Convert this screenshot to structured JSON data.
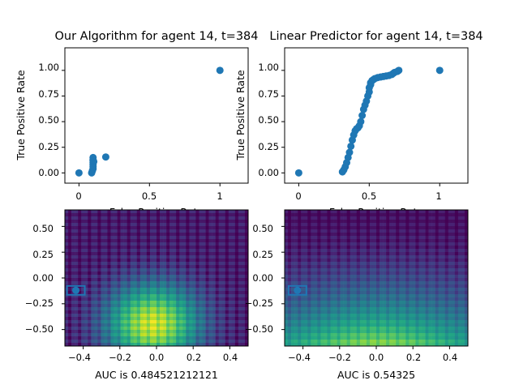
{
  "chart_data": [
    {
      "type": "scatter",
      "title": "Our Algorithm for agent 14, t=384",
      "xlabel": "False Positive Rate",
      "ylabel": "True Positive Rate",
      "xlim": [
        -0.1,
        1.2
      ],
      "ylim": [
        -0.1,
        1.22
      ],
      "xticks": [
        "0",
        "0.5",
        "1"
      ],
      "yticks": [
        "0.00",
        "0.25",
        "0.50",
        "0.75",
        "1.00"
      ],
      "color": "#1f77b4",
      "x": [
        0.0,
        0.09,
        0.095,
        0.1,
        0.1,
        0.1,
        0.1,
        0.105,
        0.1,
        0.1,
        0.1,
        0.19,
        1.0
      ],
      "y": [
        0.0,
        0.0,
        0.02,
        0.04,
        0.06,
        0.08,
        0.1,
        0.11,
        0.12,
        0.13,
        0.15,
        0.155,
        1.0
      ]
    },
    {
      "type": "scatter",
      "title": "Linear Predictor for agent 14, t=384",
      "xlabel": "False Positive Rate",
      "ylabel": "True Positive Rate",
      "xlim": [
        -0.1,
        1.2
      ],
      "ylim": [
        -0.1,
        1.22
      ],
      "xticks": [
        "0",
        "0.5",
        "1"
      ],
      "yticks": [
        "0.00",
        "0.25",
        "0.50",
        "0.75",
        "1.00"
      ],
      "color": "#1f77b4",
      "x": [
        0.0,
        0.31,
        0.32,
        0.33,
        0.34,
        0.35,
        0.36,
        0.37,
        0.38,
        0.39,
        0.4,
        0.41,
        0.42,
        0.43,
        0.44,
        0.45,
        0.46,
        0.47,
        0.48,
        0.49,
        0.5,
        0.5,
        0.51,
        0.51,
        0.52,
        0.53,
        0.54,
        0.56,
        0.58,
        0.6,
        0.62,
        0.64,
        0.66,
        0.67,
        0.68,
        0.7,
        0.71,
        1.0
      ],
      "y": [
        0.0,
        0.01,
        0.03,
        0.06,
        0.1,
        0.15,
        0.2,
        0.26,
        0.32,
        0.37,
        0.41,
        0.43,
        0.44,
        0.46,
        0.5,
        0.56,
        0.62,
        0.66,
        0.7,
        0.75,
        0.79,
        0.83,
        0.86,
        0.88,
        0.9,
        0.91,
        0.92,
        0.93,
        0.935,
        0.94,
        0.945,
        0.95,
        0.96,
        0.97,
        0.98,
        0.99,
        1.0,
        1.0
      ]
    },
    {
      "type": "heatmap",
      "xlabel": "AUC is 0.484521212121",
      "xlim": [
        -0.5,
        0.5
      ],
      "ylim": [
        -0.66,
        0.66
      ],
      "xticks": [
        "−0.4",
        "−0.2",
        "0.0",
        "0.2",
        "0.4"
      ],
      "yticks": [
        "0.50",
        "0.25",
        "0.00",
        "−0.25",
        "−0.50"
      ],
      "colormap": "viridis",
      "peak_x": -0.02,
      "peak_y": -0.45,
      "marker_x": -0.44,
      "marker_y": -0.12
    },
    {
      "type": "heatmap",
      "xlabel": "AUC is 0.54325",
      "xlim": [
        -0.5,
        0.5
      ],
      "ylim": [
        -0.66,
        0.66
      ],
      "xticks": [
        "−0.4",
        "−0.2",
        "0.0",
        "0.2",
        "0.4"
      ],
      "yticks": [
        "0.50",
        "0.25",
        "0.00",
        "−0.25",
        "−0.50"
      ],
      "colormap": "viridis",
      "peak_x": 0.0,
      "peak_y": -0.55,
      "marker_x": -0.43,
      "marker_y": -0.12
    }
  ]
}
